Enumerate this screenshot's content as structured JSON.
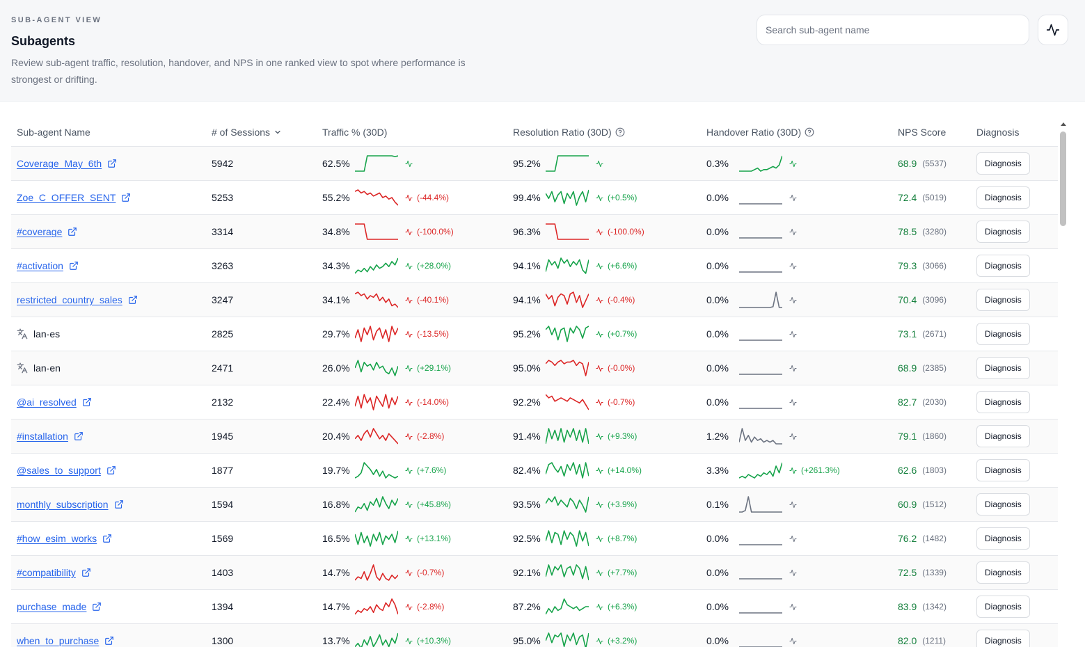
{
  "header": {
    "eyebrow": "SUB-AGENT VIEW",
    "title": "Subagents",
    "description": "Review sub-agent traffic, resolution, handover, and NPS in one ranked view to spot where performance is strongest or drifting.",
    "search_placeholder": "Search sub-agent name"
  },
  "columns": {
    "name": "Sub-agent Name",
    "sessions": "# of Sessions",
    "traffic": "Traffic % (30D)",
    "resolution": "Resolution Ratio (30D)",
    "handover": "Handover Ratio (30D)",
    "nps": "NPS Score",
    "diagnosis": "Diagnosis"
  },
  "colors": {
    "up": "#16a34a",
    "down": "#dc2626",
    "neutral": "#6b7280",
    "link": "#2563eb"
  },
  "rows": [
    {
      "name": "Coverage_May_6th",
      "type": "link",
      "sessions": "5942",
      "traffic": {
        "pct": "62.5%",
        "trend": "up",
        "change": "",
        "series": [
          0,
          0,
          0,
          0,
          10,
          10,
          10,
          10,
          10,
          10,
          10,
          10,
          10,
          9.5,
          10
        ]
      },
      "resolution": {
        "pct": "95.2%",
        "trend": "up",
        "change": "",
        "series": [
          0,
          0,
          0,
          0,
          10,
          10,
          10,
          10,
          10,
          10,
          10,
          10,
          10,
          10,
          10
        ]
      },
      "handover": {
        "pct": "0.3%",
        "trend": "up",
        "change": "",
        "series": [
          0,
          0,
          0,
          0,
          0,
          1,
          2,
          0,
          1,
          1,
          2,
          3,
          2,
          4,
          10
        ]
      },
      "nps": "68.9",
      "nps_count": "(5537)",
      "diagnosis": "Diagnosis"
    },
    {
      "name": "Zoe_C_OFFER_SENT",
      "type": "link",
      "sessions": "5253",
      "traffic": {
        "pct": "55.2%",
        "trend": "down",
        "change": "(-44.4%)",
        "series": [
          9,
          10,
          8,
          9,
          7,
          8,
          6,
          7,
          8,
          5,
          6,
          4,
          5,
          2,
          0
        ]
      },
      "resolution": {
        "pct": "99.4%",
        "trend": "up",
        "change": "(+0.5%)",
        "series": [
          8,
          5,
          9,
          3,
          7,
          9,
          2,
          8,
          5,
          9,
          1,
          6,
          9,
          3,
          10
        ]
      },
      "handover": {
        "pct": "0.0%",
        "trend": "flat",
        "change": "",
        "series": [
          0,
          0,
          0,
          0,
          0,
          0,
          0,
          0,
          0,
          0,
          0,
          0,
          0,
          0,
          0
        ]
      },
      "nps": "72.4",
      "nps_count": "(5019)",
      "diagnosis": "Diagnosis"
    },
    {
      "name": "#coverage",
      "type": "link",
      "sessions": "3314",
      "traffic": {
        "pct": "34.8%",
        "trend": "down",
        "change": "(-100.0%)",
        "series": [
          10,
          10,
          10,
          10,
          0,
          0,
          0,
          0,
          0,
          0,
          0,
          0,
          0,
          0,
          0
        ]
      },
      "resolution": {
        "pct": "96.3%",
        "trend": "down",
        "change": "(-100.0%)",
        "series": [
          10,
          10,
          10,
          10,
          0,
          0,
          0,
          0,
          0,
          0,
          0,
          0,
          0,
          0,
          0
        ]
      },
      "handover": {
        "pct": "0.0%",
        "trend": "flat",
        "change": "",
        "series": [
          0,
          0,
          0,
          0,
          0,
          0,
          0,
          0,
          0,
          0,
          0,
          0,
          0,
          0,
          0
        ]
      },
      "nps": "78.5",
      "nps_count": "(3280)",
      "diagnosis": "Diagnosis"
    },
    {
      "name": "#activation",
      "type": "link",
      "sessions": "3263",
      "traffic": {
        "pct": "34.3%",
        "trend": "up",
        "change": "(+28.0%)",
        "series": [
          1,
          3,
          2,
          4,
          2,
          5,
          3,
          6,
          4,
          5,
          7,
          5,
          8,
          6,
          10
        ]
      },
      "resolution": {
        "pct": "94.1%",
        "trend": "up",
        "change": "(+6.6%)",
        "series": [
          2,
          9,
          6,
          8,
          4,
          10,
          7,
          9,
          5,
          8,
          6,
          9,
          3,
          1,
          9
        ]
      },
      "handover": {
        "pct": "0.0%",
        "trend": "flat",
        "change": "",
        "series": [
          0,
          0,
          0,
          0,
          0,
          0,
          0,
          0,
          0,
          0,
          0,
          0,
          0,
          0,
          0
        ]
      },
      "nps": "79.3",
      "nps_count": "(3066)",
      "diagnosis": "Diagnosis"
    },
    {
      "name": "restricted_country_sales",
      "type": "link",
      "sessions": "3247",
      "traffic": {
        "pct": "34.1%",
        "trend": "down",
        "change": "(-40.1%)",
        "series": [
          9,
          10,
          8,
          9,
          6,
          8,
          7,
          9,
          5,
          7,
          4,
          6,
          2,
          3,
          1
        ]
      },
      "resolution": {
        "pct": "94.1%",
        "trend": "down",
        "change": "(-0.4%)",
        "series": [
          9,
          6,
          8,
          2,
          7,
          9,
          8,
          3,
          9,
          10,
          4,
          8,
          1,
          5,
          9
        ]
      },
      "handover": {
        "pct": "0.0%",
        "trend": "flat",
        "change": "",
        "series": [
          0,
          0,
          0,
          0,
          0,
          0,
          0,
          0,
          0,
          0,
          0,
          0.5,
          10,
          0,
          0
        ]
      },
      "nps": "70.4",
      "nps_count": "(3096)",
      "diagnosis": "Diagnosis"
    },
    {
      "name": "lan-es",
      "type": "language",
      "sessions": "2825",
      "traffic": {
        "pct": "29.7%",
        "trend": "down",
        "change": "(-13.5%)",
        "series": [
          3,
          8,
          1,
          9,
          5,
          10,
          2,
          7,
          9,
          3,
          8,
          1,
          10,
          5,
          9
        ]
      },
      "resolution": {
        "pct": "95.2%",
        "trend": "up",
        "change": "(+0.7%)",
        "series": [
          8,
          10,
          5,
          9,
          2,
          8,
          9,
          1,
          9,
          6,
          10,
          8,
          3,
          9,
          10
        ]
      },
      "handover": {
        "pct": "0.0%",
        "trend": "flat",
        "change": "",
        "series": [
          0,
          0,
          0,
          0,
          0,
          0,
          0,
          0,
          0,
          0,
          0,
          0,
          0,
          0,
          0
        ]
      },
      "nps": "73.1",
      "nps_count": "(2671)",
      "diagnosis": "Diagnosis"
    },
    {
      "name": "lan-en",
      "type": "language",
      "sessions": "2471",
      "traffic": {
        "pct": "26.0%",
        "trend": "up",
        "change": "(+29.1%)",
        "series": [
          5,
          9,
          3,
          8,
          6,
          7,
          4,
          8,
          5,
          6,
          3,
          2,
          5,
          1,
          6
        ]
      },
      "resolution": {
        "pct": "95.0%",
        "trend": "down",
        "change": "(-0.0%)",
        "series": [
          8,
          10,
          9,
          7,
          9,
          10,
          8,
          9,
          9,
          10,
          7,
          9,
          8,
          1,
          9
        ]
      },
      "handover": {
        "pct": "0.0%",
        "trend": "flat",
        "change": "",
        "series": [
          0,
          0,
          0,
          0,
          0,
          0,
          0,
          0,
          0,
          0,
          0,
          0,
          0,
          0,
          0
        ]
      },
      "nps": "68.9",
      "nps_count": "(2385)",
      "diagnosis": "Diagnosis"
    },
    {
      "name": "@ai_resolved",
      "type": "link",
      "sessions": "2132",
      "traffic": {
        "pct": "22.4%",
        "trend": "down",
        "change": "(-14.0%)",
        "series": [
          3,
          9,
          2,
          10,
          5,
          8,
          1,
          9,
          6,
          3,
          10,
          2,
          8,
          4,
          9
        ]
      },
      "resolution": {
        "pct": "92.2%",
        "trend": "down",
        "change": "(-0.7%)",
        "series": [
          10,
          8,
          9,
          6,
          7,
          8,
          7,
          6,
          8,
          7,
          6,
          5,
          7,
          4,
          1
        ]
      },
      "handover": {
        "pct": "0.0%",
        "trend": "flat",
        "change": "",
        "series": [
          0,
          0,
          0,
          0,
          0,
          0,
          0,
          0,
          0,
          0,
          0,
          0,
          0,
          0,
          0
        ]
      },
      "nps": "82.7",
      "nps_count": "(2030)",
      "diagnosis": "Diagnosis"
    },
    {
      "name": "#installation",
      "type": "link",
      "sessions": "1945",
      "traffic": {
        "pct": "20.4%",
        "trend": "down",
        "change": "(-2.8%)",
        "series": [
          3,
          5,
          2,
          6,
          8,
          4,
          9,
          6,
          3,
          5,
          2,
          6,
          4,
          2,
          0
        ]
      },
      "resolution": {
        "pct": "91.4%",
        "trend": "up",
        "change": "(+9.3%)",
        "series": [
          1,
          10,
          4,
          9,
          3,
          10,
          2,
          9,
          5,
          10,
          3,
          9,
          2,
          10,
          1
        ]
      },
      "handover": {
        "pct": "1.2%",
        "trend": "flat",
        "change": "",
        "series": [
          2,
          10,
          3,
          6,
          2,
          5,
          3,
          4,
          2,
          3,
          2,
          3,
          1,
          1,
          1
        ]
      },
      "nps": "79.1",
      "nps_count": "(1860)",
      "diagnosis": "Diagnosis"
    },
    {
      "name": "@sales_to_support",
      "type": "link",
      "sessions": "1877",
      "traffic": {
        "pct": "19.7%",
        "trend": "up",
        "change": "(+7.6%)",
        "series": [
          1,
          2,
          4,
          10,
          8,
          6,
          3,
          6,
          2,
          5,
          1,
          3,
          2,
          1,
          2
        ]
      },
      "resolution": {
        "pct": "82.4%",
        "trend": "up",
        "change": "(+14.0%)",
        "series": [
          4,
          9,
          10,
          7,
          5,
          8,
          3,
          9,
          6,
          10,
          4,
          9,
          2,
          10,
          3
        ]
      },
      "handover": {
        "pct": "3.3%",
        "trend": "up",
        "change": "(+261.3%)",
        "series": [
          1,
          2,
          1,
          3,
          2,
          1,
          3,
          2,
          4,
          3,
          5,
          2,
          8,
          4,
          10
        ]
      },
      "nps": "62.6",
      "nps_count": "(1803)",
      "diagnosis": "Diagnosis"
    },
    {
      "name": "monthly_subscription",
      "type": "link",
      "sessions": "1594",
      "traffic": {
        "pct": "16.8%",
        "trend": "up",
        "change": "(+45.8%)",
        "series": [
          1,
          4,
          3,
          6,
          2,
          7,
          5,
          9,
          4,
          10,
          6,
          3,
          8,
          5,
          9
        ]
      },
      "resolution": {
        "pct": "93.5%",
        "trend": "up",
        "change": "(+3.9%)",
        "series": [
          6,
          9,
          7,
          10,
          5,
          8,
          6,
          4,
          9,
          7,
          3,
          8,
          5,
          1,
          10
        ]
      },
      "handover": {
        "pct": "0.1%",
        "trend": "flat",
        "change": "",
        "series": [
          0,
          0,
          1,
          10,
          0,
          0,
          0,
          0,
          0,
          0,
          0,
          0,
          0,
          0,
          0
        ]
      },
      "nps": "60.9",
      "nps_count": "(1512)",
      "diagnosis": "Diagnosis"
    },
    {
      "name": "#how_esim_works",
      "type": "link",
      "sessions": "1569",
      "traffic": {
        "pct": "16.5%",
        "trend": "up",
        "change": "(+13.1%)",
        "series": [
          8,
          2,
          9,
          3,
          7,
          1,
          8,
          4,
          9,
          2,
          7,
          5,
          8,
          3,
          10
        ]
      },
      "resolution": {
        "pct": "92.5%",
        "trend": "up",
        "change": "(+8.7%)",
        "series": [
          4,
          10,
          3,
          9,
          8,
          2,
          10,
          5,
          9,
          7,
          1,
          10,
          4,
          9,
          1
        ]
      },
      "handover": {
        "pct": "0.0%",
        "trend": "flat",
        "change": "",
        "series": [
          0,
          0,
          0,
          0,
          0,
          0,
          0,
          0,
          0,
          0,
          0,
          0,
          0,
          0,
          0
        ]
      },
      "nps": "76.2",
      "nps_count": "(1482)",
      "diagnosis": "Diagnosis"
    },
    {
      "name": "#compatibility",
      "type": "link",
      "sessions": "1403",
      "traffic": {
        "pct": "14.7%",
        "trend": "down",
        "change": "(-0.7%)",
        "series": [
          1,
          3,
          2,
          6,
          1,
          5,
          10,
          3,
          1,
          5,
          2,
          1,
          4,
          2,
          4
        ]
      },
      "resolution": {
        "pct": "92.1%",
        "trend": "up",
        "change": "(+7.7%)",
        "series": [
          3,
          10,
          4,
          9,
          7,
          10,
          3,
          8,
          9,
          4,
          10,
          8,
          2,
          9,
          1
        ]
      },
      "handover": {
        "pct": "0.0%",
        "trend": "flat",
        "change": "",
        "series": [
          0,
          0,
          0,
          0,
          0,
          0,
          0,
          0,
          0,
          0,
          0,
          0,
          0,
          0,
          0
        ]
      },
      "nps": "72.5",
      "nps_count": "(1339)",
      "diagnosis": "Diagnosis"
    },
    {
      "name": "purchase_made",
      "type": "link",
      "sessions": "1394",
      "traffic": {
        "pct": "14.7%",
        "trend": "down",
        "change": "(-2.8%)",
        "series": [
          1,
          3,
          2,
          4,
          3,
          5,
          2,
          6,
          4,
          3,
          7,
          5,
          9,
          6,
          1
        ]
      },
      "resolution": {
        "pct": "87.2%",
        "trend": "up",
        "change": "(+6.3%)",
        "series": [
          1,
          4,
          2,
          5,
          3,
          4,
          9,
          6,
          5,
          4,
          5,
          3,
          4,
          5,
          5
        ]
      },
      "handover": {
        "pct": "0.0%",
        "trend": "flat",
        "change": "",
        "series": [
          0,
          0,
          0,
          0,
          0,
          0,
          0,
          0,
          0,
          0,
          0,
          0,
          0,
          0,
          0
        ]
      },
      "nps": "83.9",
      "nps_count": "(1342)",
      "diagnosis": "Diagnosis"
    },
    {
      "name": "when_to_purchase",
      "type": "link",
      "sessions": "1300",
      "traffic": {
        "pct": "13.7%",
        "trend": "up",
        "change": "(+10.3%)",
        "series": [
          2,
          4,
          1,
          6,
          3,
          8,
          2,
          5,
          9,
          3,
          6,
          2,
          7,
          4,
          10
        ]
      },
      "resolution": {
        "pct": "95.0%",
        "trend": "up",
        "change": "(+3.2%)",
        "series": [
          6,
          10,
          5,
          9,
          8,
          10,
          3,
          9,
          6,
          10,
          4,
          8,
          9,
          2,
          10
        ]
      },
      "handover": {
        "pct": "0.0%",
        "trend": "flat",
        "change": "",
        "series": [
          0,
          0,
          0,
          0,
          0,
          0,
          0,
          0,
          0,
          0,
          0,
          0,
          0,
          0,
          0
        ]
      },
      "nps": "82.0",
      "nps_count": "(1211)",
      "diagnosis": "Diagnosis"
    }
  ]
}
